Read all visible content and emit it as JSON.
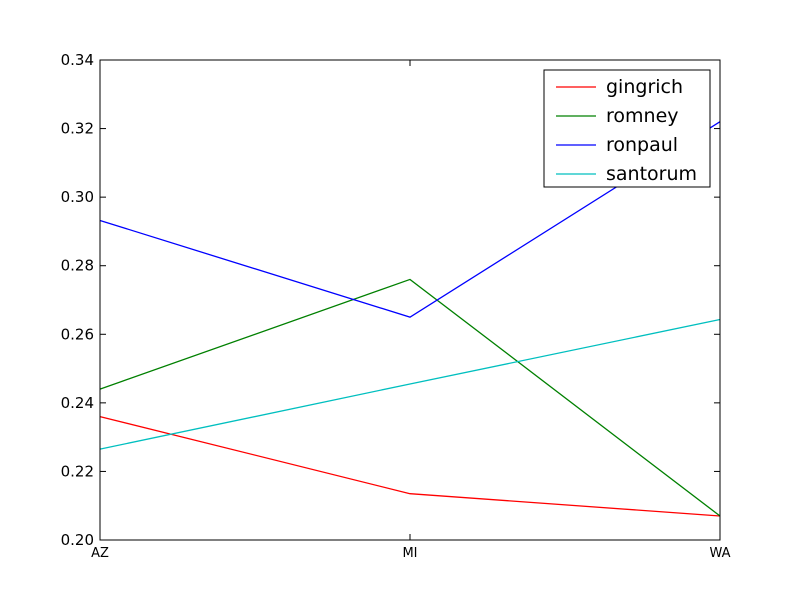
{
  "chart_data": {
    "type": "line",
    "title": "",
    "xlabel": "",
    "ylabel": "",
    "categories": [
      "AZ",
      "MI",
      "WA"
    ],
    "ylim": [
      0.2,
      0.34
    ],
    "yticks": [
      "0.20",
      "0.22",
      "0.24",
      "0.26",
      "0.28",
      "0.30",
      "0.32",
      "0.34"
    ],
    "grid": false,
    "legend_position": "top-right",
    "series": [
      {
        "name": "gingrich",
        "color": "#ff0000",
        "values": [
          0.236,
          0.2135,
          0.207
        ]
      },
      {
        "name": "romney",
        "color": "#008000",
        "values": [
          0.244,
          0.276,
          0.207
        ]
      },
      {
        "name": "ronpaul",
        "color": "#0000ff",
        "values": [
          0.2932,
          0.265,
          0.322
        ]
      },
      {
        "name": "santorum",
        "color": "#00bfbf",
        "values": [
          0.2265,
          0.2455,
          0.2643
        ]
      }
    ]
  }
}
